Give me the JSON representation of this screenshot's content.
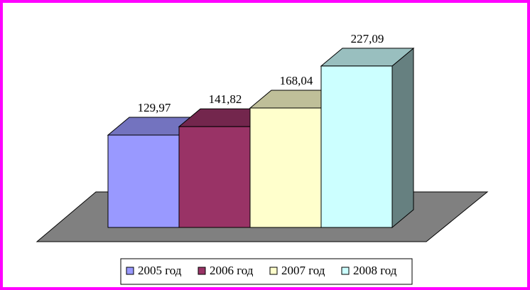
{
  "chart_data": {
    "type": "bar3d",
    "series": [
      {
        "name": "2005 год",
        "color": "#9999ff",
        "values": [
          129.97
        ],
        "value_labels": [
          "129,97"
        ]
      },
      {
        "name": "2006 год",
        "color": "#993366",
        "values": [
          141.82
        ],
        "value_labels": [
          "141,82"
        ]
      },
      {
        "name": "2007 год",
        "color": "#ffffcc",
        "values": [
          168.04
        ],
        "value_labels": [
          "168,04"
        ]
      },
      {
        "name": "2008 год",
        "color": "#ccffff",
        "values": [
          227.09
        ],
        "value_labels": [
          "227,09"
        ]
      }
    ],
    "legend": "bottom"
  }
}
